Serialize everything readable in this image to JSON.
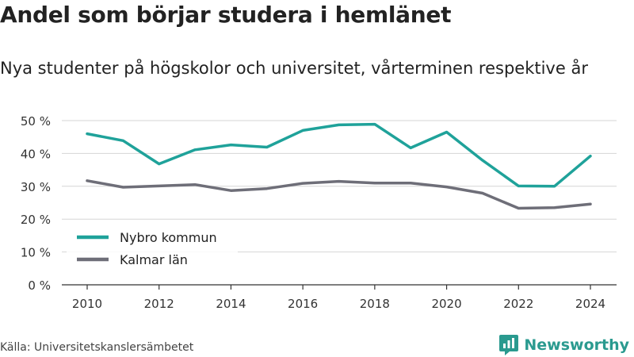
{
  "title": "Andel som börjar studera i hemlänet",
  "subtitle": "Nya studenter på högskolor och universitet, vårterminen respektive år",
  "source": "Källa: Universitetskanslersämbetet",
  "brand": {
    "name": "Newsworthy",
    "icon": "newsworthy-logo-icon",
    "color": "#2a9a8f"
  },
  "chart_data": {
    "type": "line",
    "x": [
      2010,
      2011,
      2012,
      2013,
      2014,
      2015,
      2016,
      2017,
      2018,
      2019,
      2020,
      2021,
      2022,
      2023,
      2024
    ],
    "xticks": [
      2010,
      2012,
      2014,
      2016,
      2018,
      2020,
      2022,
      2024
    ],
    "yticks": [
      0,
      10,
      20,
      30,
      40,
      50
    ],
    "y_tick_format": "{v} %",
    "ylim": [
      0,
      50
    ],
    "grid": true,
    "legend_position": "bottom-left",
    "series": [
      {
        "name": "Nybro kommun",
        "color": "#1fa29a",
        "values": [
          46.0,
          43.9,
          36.8,
          41.1,
          42.6,
          41.9,
          47.0,
          48.7,
          48.9,
          41.7,
          46.5,
          37.9,
          30.1,
          30.0,
          39.2
        ]
      },
      {
        "name": "Kalmar län",
        "color": "#6e6e78",
        "values": [
          31.7,
          29.7,
          30.1,
          30.5,
          28.7,
          29.3,
          30.9,
          31.5,
          31.0,
          31.0,
          29.8,
          27.9,
          23.3,
          23.5,
          24.6
        ]
      }
    ]
  }
}
